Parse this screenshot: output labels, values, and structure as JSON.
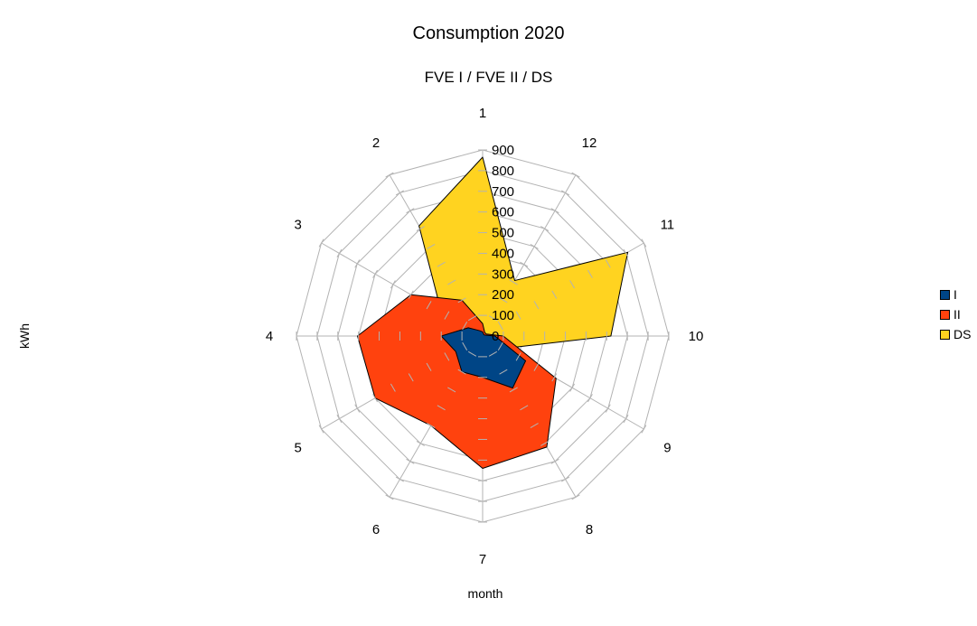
{
  "chart_data": {
    "type": "radar",
    "title": "Consumption 2020",
    "subtitle": "FVE I / FVE II / DS",
    "xlabel": "month",
    "ylabel": "kWh",
    "categories": [
      "1",
      "2",
      "3",
      "4",
      "5",
      "6",
      "7",
      "8",
      "9",
      "10",
      "11",
      "12"
    ],
    "ylim": [
      0,
      900
    ],
    "radial_ticks": [
      0,
      100,
      200,
      300,
      400,
      500,
      600,
      700,
      800,
      900
    ],
    "grid": true,
    "legend_position": "right",
    "series": [
      {
        "name": "DS",
        "color": "#ffd320",
        "values": [
          865,
          615,
          230,
          130,
          40,
          20,
          20,
          20,
          120,
          620,
          810,
          310
        ]
      },
      {
        "name": "II",
        "color": "#ff420e",
        "values": [
          60,
          200,
          400,
          605,
          600,
          500,
          640,
          620,
          410,
          100,
          20,
          20
        ]
      },
      {
        "name": "I",
        "color": "#004586",
        "values": [
          20,
          30,
          80,
          200,
          150,
          200,
          200,
          290,
          240,
          60,
          10,
          10
        ]
      }
    ]
  },
  "legend": [
    {
      "label": "I",
      "color": "#004586"
    },
    {
      "label": "II",
      "color": "#ff420e"
    },
    {
      "label": "DS",
      "color": "#ffd320"
    }
  ]
}
